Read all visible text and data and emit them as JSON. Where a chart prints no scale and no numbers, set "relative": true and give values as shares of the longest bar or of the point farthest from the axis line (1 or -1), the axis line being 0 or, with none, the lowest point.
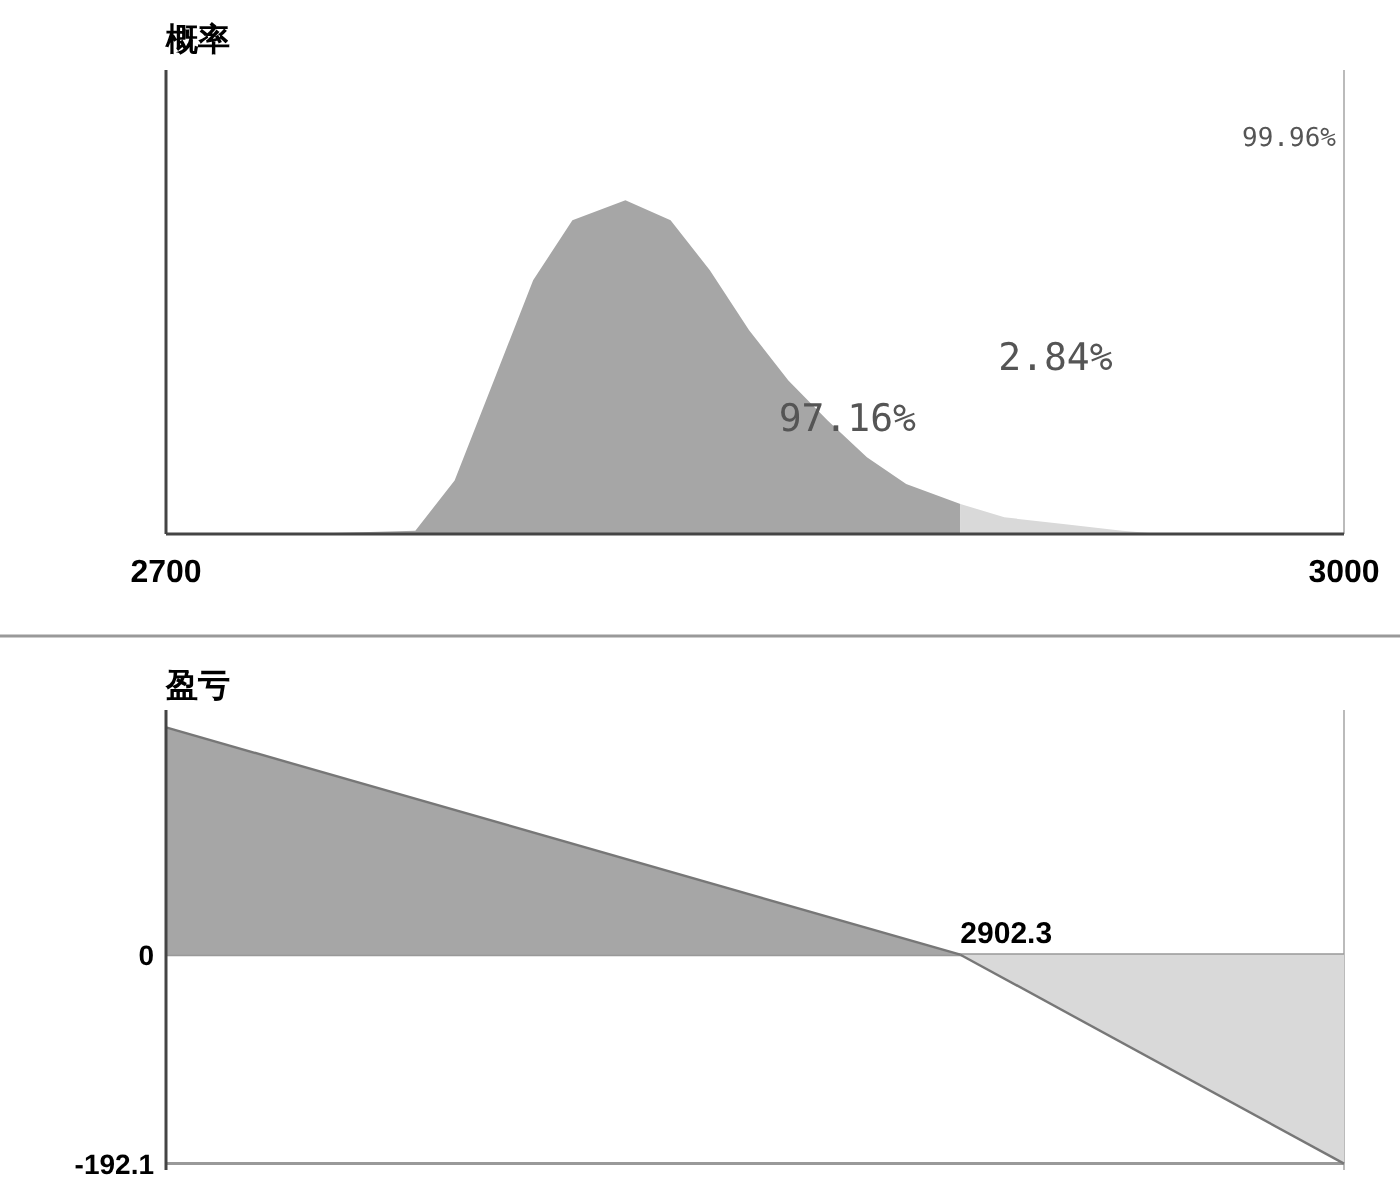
{
  "chart_data": [
    {
      "type": "area",
      "title": "概率",
      "relative": true,
      "xlim": [
        2700,
        3000
      ],
      "xticks": [
        2700,
        3000
      ],
      "tick_labels": "x",
      "series": [
        {
          "color": "#a6a6a6",
          "x": [
            2733.5,
            2763.5,
            2773.5,
            2783.5,
            2793.5,
            2803.5,
            2817,
            2828.5,
            2838.5,
            2848.5,
            2858.5,
            2868.5,
            2878.5,
            2888.5,
            2902.3
          ],
          "values": [
            0,
            0.01,
            0.16,
            0.46,
            0.76,
            0.94,
            1,
            0.94,
            0.79,
            0.61,
            0.46,
            0.34,
            0.23,
            0.15,
            0.09
          ]
        },
        {
          "color": "#d9d9d9",
          "x": [
            2902.3,
            2913.5,
            2928.5,
            2943.5,
            2953.5
          ],
          "values": [
            0.09,
            0.05,
            0.03,
            0.01,
            0
          ]
        }
      ],
      "annotations": [
        {
          "text": "97.16%",
          "x": 2873.5,
          "y": 0.31
        },
        "2.84%",
        "99.96%"
      ]
    },
    {
      "type": "area",
      "title": "盈亏",
      "xlim": [
        2700,
        3000
      ],
      "ylim": [
        -198,
        225
      ],
      "yticks": [
        0,
        -192.1
      ],
      "tick_labels": "y",
      "grid": "y",
      "series": [
        {
          "color": "#a6a6a6",
          "x": [
            2700,
            2902.3
          ],
          "values": [
            209,
            0
          ]
        },
        {
          "color": "#d9d9d9",
          "x": [
            2902.3,
            3000
          ],
          "values": [
            0,
            -192.1
          ]
        }
      ],
      "annotations": [
        {
          "text": "2902.3",
          "x": 2902.3,
          "y": 0
        }
      ]
    }
  ]
}
